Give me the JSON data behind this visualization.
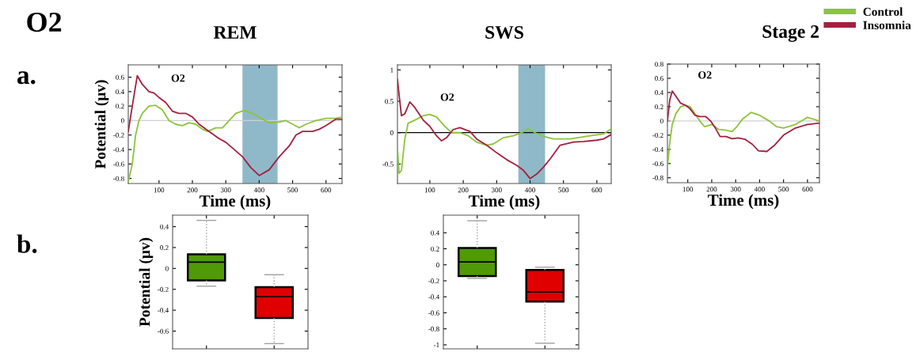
{
  "chart_data": [
    {
      "type": "line",
      "title": "REM",
      "xlabel": "Time (ms)",
      "ylabel": "Potential (μv)",
      "annotations": [
        "O2",
        "a.",
        "O2"
      ],
      "xlim": [
        8,
        648
      ],
      "ylim": [
        -0.87,
        0.77
      ],
      "xticks": [
        100,
        200,
        300,
        400,
        500,
        600
      ],
      "yticks": [
        -0.8,
        -0.6,
        -0.4,
        -0.2,
        0,
        0.2,
        0.4,
        0.6
      ],
      "ref_lines": [
        {
          "axis": "y",
          "value": 0,
          "color": "#d0d0d0"
        }
      ],
      "bands": [
        {
          "axis": "x",
          "from": 350,
          "to": 455,
          "color": "#8fb9c8"
        }
      ],
      "line_style": "solid",
      "marker": "none",
      "grid": false,
      "legend": false,
      "series": [
        {
          "color": "#8cc43c",
          "x": [
            8,
            20,
            30,
            40,
            50,
            70,
            90,
            110,
            130,
            150,
            170,
            190,
            210,
            230,
            245,
            270,
            290,
            310,
            330,
            355,
            380,
            410,
            430,
            460,
            480,
            500,
            520,
            540,
            570,
            600,
            630,
            648
          ],
          "values": [
            -0.85,
            -0.6,
            -0.2,
            0.0,
            0.1,
            0.2,
            0.21,
            0.15,
            0.0,
            -0.05,
            -0.07,
            -0.03,
            -0.05,
            -0.12,
            -0.15,
            -0.1,
            -0.1,
            0.0,
            0.1,
            0.14,
            0.1,
            0.02,
            -0.03,
            -0.02,
            0.0,
            -0.05,
            -0.1,
            -0.05,
            0.0,
            0.03,
            0.03,
            0.05
          ]
        },
        {
          "color": "#a3203f",
          "x": [
            8,
            20,
            35,
            50,
            70,
            85,
            100,
            120,
            140,
            160,
            180,
            200,
            220,
            250,
            280,
            300,
            320,
            350,
            375,
            400,
            430,
            460,
            490,
            510,
            530,
            560,
            580,
            600,
            630,
            648
          ],
          "values": [
            -0.15,
            0.2,
            0.62,
            0.5,
            0.4,
            0.38,
            0.32,
            0.25,
            0.13,
            0.1,
            0.1,
            0.05,
            -0.05,
            -0.15,
            -0.25,
            -0.3,
            -0.38,
            -0.5,
            -0.65,
            -0.76,
            -0.68,
            -0.5,
            -0.35,
            -0.2,
            -0.15,
            -0.15,
            -0.12,
            -0.07,
            0.02,
            0.02
          ]
        }
      ]
    },
    {
      "type": "line",
      "title": "SWS",
      "xlabel": "Time (ms)",
      "annotations": [
        "O2"
      ],
      "xlim": [
        3,
        643
      ],
      "ylim": [
        -0.81,
        1.08
      ],
      "xticks": [
        100,
        200,
        300,
        400,
        500,
        600
      ],
      "yticks": [
        -0.5,
        0,
        0.5,
        1
      ],
      "ref_lines": [
        {
          "axis": "y",
          "value": 0,
          "color": "#000000"
        }
      ],
      "bands": [
        {
          "axis": "x",
          "from": 365,
          "to": 445,
          "color": "#8fb9c8"
        }
      ],
      "line_style": "solid",
      "marker": "none",
      "grid": false,
      "legend": false,
      "series": [
        {
          "color": "#8cc43c",
          "x": [
            3,
            8,
            15,
            25,
            35,
            55,
            80,
            100,
            120,
            145,
            165,
            190,
            215,
            240,
            270,
            290,
            320,
            350,
            375,
            395,
            415,
            440,
            470,
            520,
            580,
            620,
            643
          ],
          "values": [
            -0.25,
            -0.65,
            -0.6,
            -0.1,
            0.15,
            0.2,
            0.27,
            0.29,
            0.25,
            0.1,
            0.0,
            0.0,
            -0.05,
            -0.15,
            -0.2,
            -0.18,
            -0.08,
            -0.05,
            0.0,
            0.06,
            0.0,
            -0.06,
            -0.1,
            -0.1,
            -0.05,
            -0.02,
            0.06
          ]
        },
        {
          "color": "#a3203f",
          "x": [
            3,
            10,
            15,
            25,
            40,
            55,
            80,
            100,
            120,
            135,
            150,
            170,
            190,
            220,
            240,
            270,
            300,
            330,
            360,
            380,
            400,
            420,
            440,
            460,
            490,
            530,
            560,
            600,
            620,
            643
          ],
          "values": [
            0.85,
            0.5,
            0.27,
            0.3,
            0.49,
            0.4,
            0.2,
            0.1,
            -0.05,
            -0.13,
            -0.08,
            0.05,
            0.08,
            0.02,
            -0.1,
            -0.2,
            -0.32,
            -0.43,
            -0.52,
            -0.6,
            -0.73,
            -0.66,
            -0.55,
            -0.42,
            -0.2,
            -0.15,
            -0.14,
            -0.12,
            -0.1,
            -0.03
          ]
        }
      ]
    },
    {
      "type": "line",
      "title": "Stage 2",
      "xlabel": "Time (ms)",
      "annotations": [
        "O2"
      ],
      "xlim": [
        15,
        650
      ],
      "ylim": [
        -0.87,
        0.8
      ],
      "xticks": [
        100,
        200,
        300,
        400,
        500,
        600
      ],
      "yticks": [
        -0.8,
        -0.6,
        -0.4,
        -0.2,
        0,
        0.2,
        0.4,
        0.6,
        0.8
      ],
      "ref_lines": [
        {
          "axis": "y",
          "value": 0,
          "color": "#d0d0d0"
        }
      ],
      "line_style": "solid",
      "marker": "none",
      "grid": false,
      "legend": "top right",
      "series": [
        {
          "name": "Control",
          "color": "#8cc43c",
          "x": [
            15,
            25,
            35,
            50,
            70,
            90,
            110,
            130,
            150,
            170,
            200,
            230,
            260,
            285,
            305,
            330,
            365,
            400,
            440,
            470,
            500,
            550,
            600,
            650
          ],
          "values": [
            -0.65,
            -0.3,
            -0.05,
            0.1,
            0.2,
            0.22,
            0.2,
            0.1,
            0.0,
            -0.08,
            -0.05,
            -0.12,
            -0.13,
            -0.15,
            -0.08,
            0.03,
            0.12,
            0.08,
            0.0,
            -0.08,
            -0.1,
            -0.05,
            0.05,
            0.0
          ]
        },
        {
          "name": "Insomnia",
          "color": "#a3203f",
          "x": [
            15,
            25,
            35,
            50,
            70,
            90,
            110,
            130,
            150,
            175,
            195,
            215,
            235,
            260,
            285,
            310,
            340,
            370,
            395,
            430,
            460,
            500,
            550,
            600,
            650
          ],
          "values": [
            0.0,
            0.3,
            0.42,
            0.35,
            0.25,
            0.22,
            0.17,
            0.08,
            0.06,
            0.06,
            0.0,
            -0.1,
            -0.22,
            -0.22,
            -0.25,
            -0.24,
            -0.26,
            -0.33,
            -0.42,
            -0.43,
            -0.35,
            -0.2,
            -0.1,
            -0.05,
            -0.03
          ]
        }
      ]
    },
    {
      "type": "box",
      "ylabel": "Potential (μv)",
      "annotations": [
        "b."
      ],
      "categories": [
        null,
        null
      ],
      "ylim": [
        -0.77,
        0.51
      ],
      "yticks": [
        -0.6,
        -0.4,
        -0.2,
        0,
        0.2,
        0.4
      ],
      "colors": [
        "#4f9a06",
        "#e00000"
      ],
      "grid": false,
      "legend": false,
      "boxes": [
        {
          "low": -0.17,
          "q1": -0.115,
          "median": 0.06,
          "q3": 0.135,
          "high": 0.46
        },
        {
          "low": -0.72,
          "q1": -0.475,
          "median": -0.27,
          "q3": -0.18,
          "high": -0.06
        }
      ]
    },
    {
      "type": "box",
      "categories": [
        null,
        null
      ],
      "ylim": [
        -1.05,
        0.62
      ],
      "yticks": [
        -1,
        -0.8,
        -0.6,
        -0.4,
        -0.2,
        0,
        0.2,
        0.4
      ],
      "colors": [
        "#4f9a06",
        "#e00000"
      ],
      "grid": false,
      "legend": false,
      "boxes": [
        {
          "low": -0.17,
          "q1": -0.14,
          "median": 0.035,
          "q3": 0.21,
          "high": 0.55
        },
        {
          "low": -0.98,
          "q1": -0.46,
          "median": -0.34,
          "q3": -0.065,
          "high": -0.03
        }
      ]
    }
  ]
}
